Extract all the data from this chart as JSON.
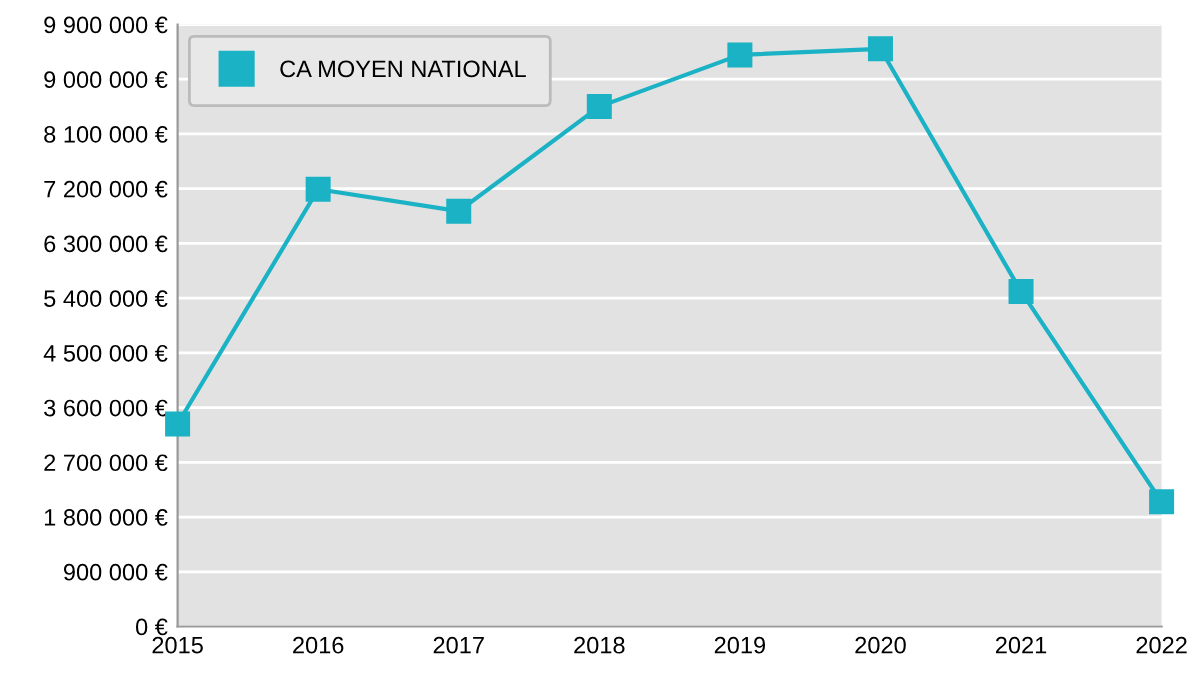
{
  "chart_data": {
    "type": "line",
    "x": [
      2015,
      2016,
      2017,
      2018,
      2019,
      2020,
      2021,
      2022
    ],
    "series": [
      {
        "name": "CA MOYEN NATIONAL",
        "color": "#1ab2c4",
        "values": [
          3330000,
          7190000,
          6830000,
          8550000,
          9400000,
          9500000,
          5510000,
          2050000
        ]
      }
    ],
    "xlim": [
      2015,
      2022
    ],
    "xticks": [
      2015,
      2016,
      2017,
      2018,
      2019,
      2020,
      2021,
      2022
    ],
    "ylim": [
      0,
      9900000
    ],
    "yticks": [
      {
        "value": 0,
        "label": "0 €"
      },
      {
        "value": 900000,
        "label": "900 000 €"
      },
      {
        "value": 1800000,
        "label": "1 800 000 €"
      },
      {
        "value": 2700000,
        "label": "2 700 000 €"
      },
      {
        "value": 3600000,
        "label": "3 600 000 €"
      },
      {
        "value": 4500000,
        "label": "4 500 000 €"
      },
      {
        "value": 5400000,
        "label": "5 400 000 €"
      },
      {
        "value": 6300000,
        "label": "6 300 000 €"
      },
      {
        "value": 7200000,
        "label": "7 200 000 €"
      },
      {
        "value": 8100000,
        "label": "8 100 000 €"
      },
      {
        "value": 9000000,
        "label": "9 000 000 €"
      },
      {
        "value": 9900000,
        "label": "9 900 000 €"
      }
    ],
    "grid": "y",
    "legend": "top left",
    "marker": "square",
    "line_style": "solid"
  }
}
